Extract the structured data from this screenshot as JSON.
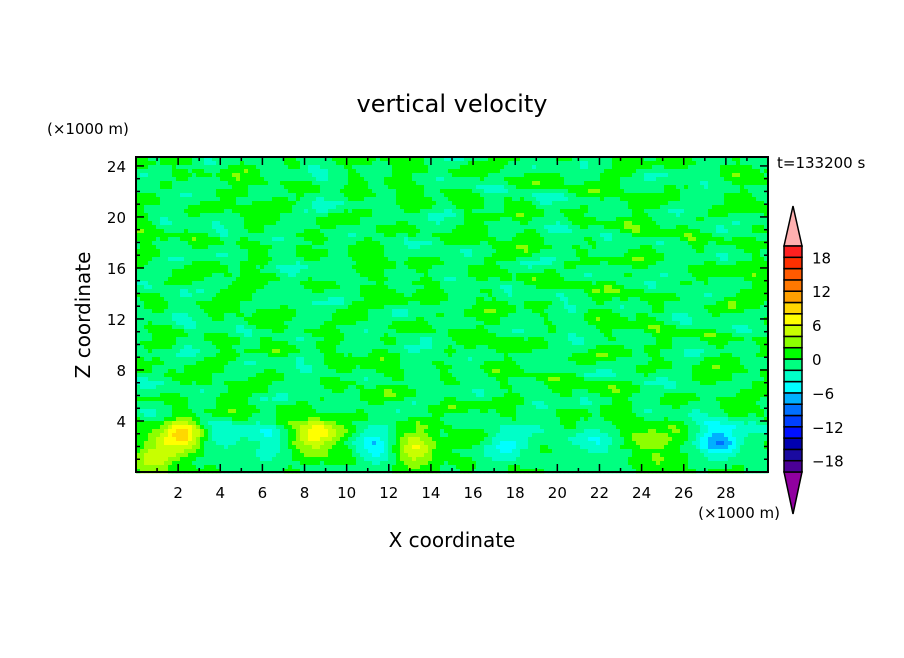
{
  "chart_data": {
    "type": "heatmap",
    "title": "vertical velocity",
    "xlabel": "X coordinate",
    "ylabel": "Z coordinate",
    "x_unit_label": "(×1000 m)",
    "y_unit_label": "(×1000 m)",
    "time_label": "t=133200 s",
    "xlim": [
      0,
      30
    ],
    "ylim": [
      0,
      24.7
    ],
    "x_ticks": [
      2,
      4,
      6,
      8,
      10,
      12,
      14,
      16,
      18,
      20,
      22,
      24,
      26,
      28
    ],
    "y_ticks": [
      4,
      8,
      12,
      16,
      20,
      24
    ],
    "colorbar": {
      "levels": [
        -20,
        -18,
        -16,
        -14,
        -12,
        -10,
        -8,
        -6,
        -4,
        -2,
        0,
        2,
        4,
        6,
        8,
        10,
        12,
        14,
        16,
        18,
        20
      ],
      "tick_labels": [
        18,
        12,
        6,
        0,
        -6,
        -12,
        -18
      ],
      "colors": [
        "#4b0096",
        "#1a0aa0",
        "#0000b0",
        "#0010ff",
        "#0040ff",
        "#0070ff",
        "#00b0ff",
        "#00ffff",
        "#00ffc8",
        "#00ff80",
        "#00ff00",
        "#8cff00",
        "#c8ff00",
        "#ffff00",
        "#ffd700",
        "#ffa000",
        "#ff7800",
        "#ff5a00",
        "#ff3000",
        "#ff2020"
      ],
      "over_color": "#ffb0b0",
      "under_color": "#9000a0"
    },
    "features": [
      {
        "x": 2.2,
        "z": 2.9,
        "amplitude": 8.5
      },
      {
        "x": 0.9,
        "z": 1.4,
        "amplitude": 5
      },
      {
        "x": 8.6,
        "z": 2.9,
        "amplitude": 8.2
      },
      {
        "x": 13.3,
        "z": 1.8,
        "amplitude": 6.6
      },
      {
        "x": 24.6,
        "z": 2.2,
        "amplitude": 4.2
      },
      {
        "x": 4.3,
        "z": 2.6,
        "amplitude": -3.5
      },
      {
        "x": 6.3,
        "z": 2.6,
        "amplitude": -3
      },
      {
        "x": 11.3,
        "z": 1.9,
        "amplitude": -5.2
      },
      {
        "x": 17.6,
        "z": 2.2,
        "amplitude": -4.6
      },
      {
        "x": 22.0,
        "z": 2.0,
        "amplitude": -3.6
      },
      {
        "x": 27.8,
        "z": 2.5,
        "amplitude": -7.6
      }
    ]
  }
}
